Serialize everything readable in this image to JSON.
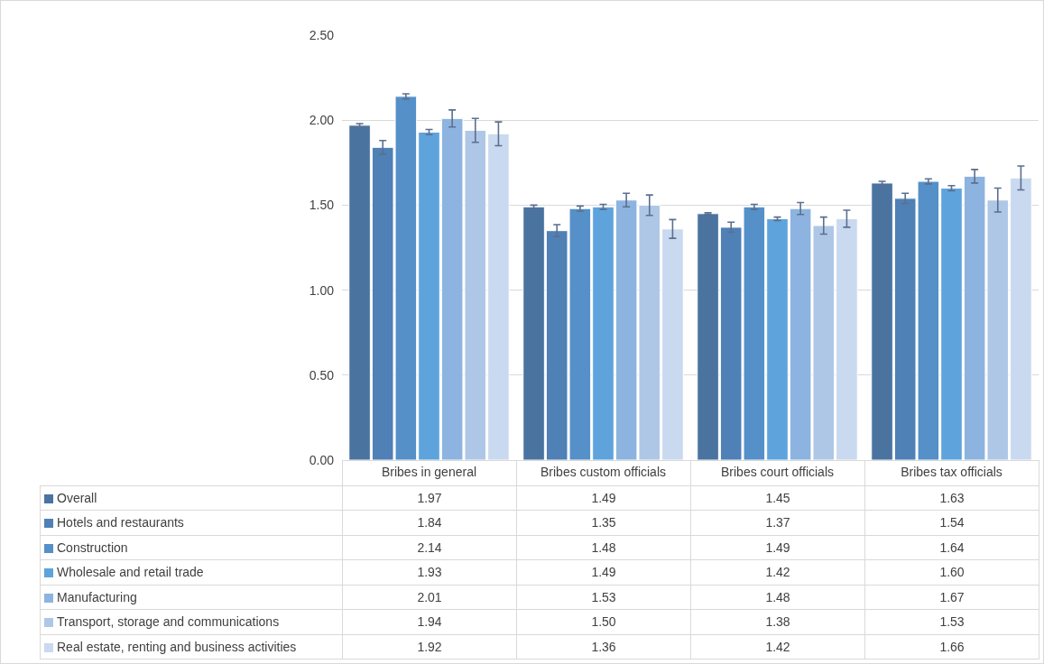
{
  "chart_data": {
    "type": "bar",
    "categories": [
      "Bribes in general",
      "Bribes custom officials",
      "Bribes court officials",
      "Bribes tax officials"
    ],
    "series": [
      {
        "name": "Overall",
        "color": "#4a73a0",
        "values": [
          1.97,
          1.49,
          1.45,
          1.63
        ],
        "errors": [
          0.01,
          0.01,
          0.005,
          0.01
        ],
        "value_labels": [
          "1.97",
          "1.49",
          "1.45",
          "1.63"
        ]
      },
      {
        "name": "Hotels and restaurants",
        "color": "#4f80b6",
        "values": [
          1.84,
          1.35,
          1.37,
          1.54
        ],
        "errors": [
          0.04,
          0.035,
          0.03,
          0.03
        ],
        "value_labels": [
          "1.84",
          "1.35",
          "1.37",
          "1.54"
        ]
      },
      {
        "name": "Construction",
        "color": "#5590c8",
        "values": [
          2.14,
          1.48,
          1.49,
          1.64
        ],
        "errors": [
          0.015,
          0.015,
          0.015,
          0.015
        ],
        "value_labels": [
          "2.14",
          "1.48",
          "1.49",
          "1.64"
        ]
      },
      {
        "name": "Wholesale and retail trade",
        "color": "#5ea3dc",
        "values": [
          1.93,
          1.49,
          1.42,
          1.6
        ],
        "errors": [
          0.015,
          0.015,
          0.01,
          0.015
        ],
        "value_labels": [
          "1.93",
          "1.49",
          "1.42",
          "1.60"
        ]
      },
      {
        "name": "Manufacturing",
        "color": "#8db4e0",
        "values": [
          2.01,
          1.53,
          1.48,
          1.67
        ],
        "errors": [
          0.05,
          0.04,
          0.035,
          0.04
        ],
        "value_labels": [
          "2.01",
          "1.53",
          "1.48",
          "1.67"
        ]
      },
      {
        "name": "Transport, storage and communications",
        "color": "#afc7e6",
        "values": [
          1.94,
          1.5,
          1.38,
          1.53
        ],
        "errors": [
          0.07,
          0.06,
          0.05,
          0.07
        ],
        "value_labels": [
          "1.94",
          "1.50",
          "1.38",
          "1.53"
        ]
      },
      {
        "name": "Real estate, renting and business activities",
        "color": "#c9d9ef",
        "values": [
          1.92,
          1.36,
          1.42,
          1.66
        ],
        "errors": [
          0.07,
          0.055,
          0.05,
          0.07
        ],
        "value_labels": [
          "1.92",
          "1.36",
          "1.42",
          "1.66"
        ]
      }
    ],
    "ylim": [
      0,
      2.5
    ],
    "yticks": [
      {
        "value": 0,
        "label": "0.00"
      },
      {
        "value": 0.5,
        "label": "0.50"
      },
      {
        "value": 1,
        "label": "1.00"
      },
      {
        "value": 1.5,
        "label": "1.50"
      },
      {
        "value": 2,
        "label": "2.00"
      },
      {
        "value": 2.5,
        "label": "2.50"
      }
    ],
    "grid": "y",
    "legend": "bottom"
  }
}
